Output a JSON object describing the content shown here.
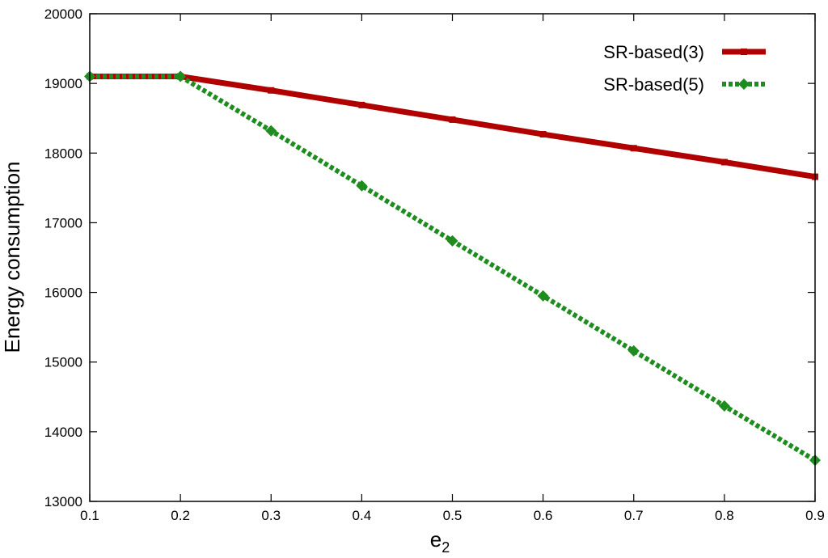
{
  "chart_data": {
    "type": "line",
    "title": "",
    "xlabel": "e",
    "xlabel_sub": "2",
    "ylabel": "Energy consumption",
    "xlim": [
      0.1,
      0.9
    ],
    "ylim": [
      13000,
      20000
    ],
    "xticks": [
      "0.1",
      "0.2",
      "0.3",
      "0.4",
      "0.5",
      "0.6",
      "0.7",
      "0.8",
      "0.9"
    ],
    "yticks": [
      "13000",
      "14000",
      "15000",
      "16000",
      "17000",
      "18000",
      "19000",
      "20000"
    ],
    "grid": false,
    "legend_position": "top-right",
    "x": [
      0.1,
      0.2,
      0.3,
      0.4,
      0.5,
      0.6,
      0.7,
      0.8,
      0.9
    ],
    "series": [
      {
        "name": "SR-based(3)",
        "color": "#b00000",
        "style": "solid",
        "marker": "square",
        "values": [
          19100,
          19100,
          18900,
          18690,
          18480,
          18270,
          18070,
          17870,
          17660
        ]
      },
      {
        "name": "SR-based(5)",
        "color": "#1e8c1e",
        "style": "dashed",
        "marker": "diamond",
        "values": [
          19100,
          19100,
          18320,
          17530,
          16740,
          15950,
          15160,
          14370,
          13590
        ]
      }
    ]
  }
}
